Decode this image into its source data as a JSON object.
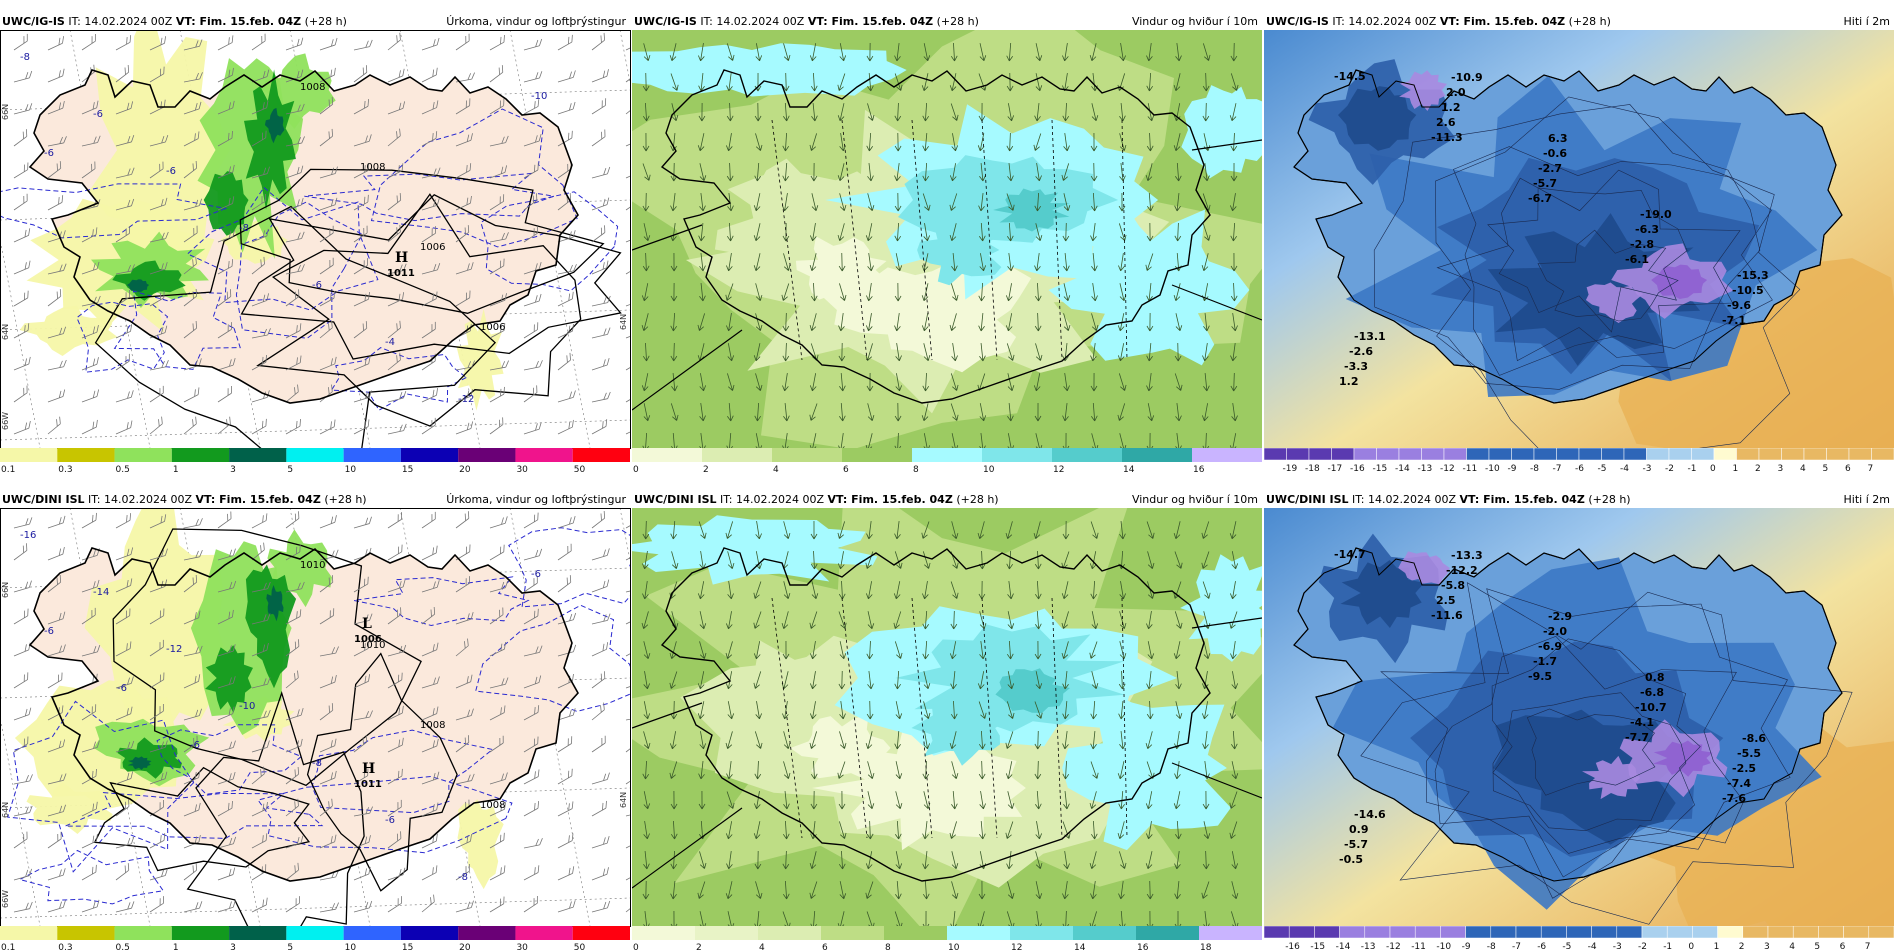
{
  "panels": [
    {
      "model": "UWC/IG-IS",
      "it": "IT: 14.02.2024 00Z",
      "vt": "VT: Fim. 15.feb. 04Z",
      "lead": "(+28 h)",
      "title": "Úrkoma, vindur og loftþrýstingur",
      "kind": "precip",
      "legend": {
        "colors": [
          "#f5f7a8",
          "#c8c500",
          "#8fe25c",
          "#129a1e",
          "#00614a",
          "#00f0f0",
          "#2f64ff",
          "#0c00b4",
          "#6a0076",
          "#f0148c",
          "#ff0010"
        ],
        "labels": [
          "0.1",
          "0.3",
          "0.5",
          "1",
          "3",
          "5",
          "10",
          "15",
          "20",
          "30",
          "50"
        ]
      },
      "highs": [
        {
          "letter": "H",
          "value": "1011"
        }
      ],
      "isobars": [
        "1008",
        "1008",
        "1006",
        "1006"
      ],
      "temps": [
        "-8",
        "-6",
        "-6",
        "-8",
        "-6",
        "-4",
        "-12",
        "-10",
        "-6"
      ],
      "side_labels": [
        "66N",
        "64N",
        "66W",
        "64N"
      ]
    },
    {
      "model": "UWC/IG-IS",
      "it": "IT: 14.02.2024 00Z",
      "vt": "VT: Fim. 15.feb. 04Z",
      "lead": "(+28 h)",
      "title": "Vindur og hviður í 10m",
      "kind": "wind",
      "legend": {
        "colors": [
          "#f3f9d8",
          "#dcedb2",
          "#bedd85",
          "#9ccb62",
          "#a6faff",
          "#7fe6ea",
          "#55cccc",
          "#2fa8a6",
          "#c9b4ff"
        ],
        "labels": [
          "0",
          "2",
          "4",
          "6",
          "8",
          "10",
          "12",
          "14",
          "16"
        ]
      }
    },
    {
      "model": "UWC/IG-IS",
      "it": "IT: 14.02.2024 00Z",
      "vt": "VT: Fim. 15.feb. 04Z",
      "lead": "(+28 h)",
      "title": "Hiti í 2m",
      "kind": "temp",
      "legend": {
        "labels": [
          "-19",
          "-18",
          "-17",
          "-16",
          "-15",
          "-14",
          "-13",
          "-12",
          "-11",
          "-10",
          "-9",
          "-8",
          "-7",
          "-6",
          "-5",
          "-4",
          "-3",
          "-2",
          "-1",
          "0",
          "1",
          "2",
          "3",
          "4",
          "5",
          "6",
          "7"
        ]
      },
      "values": [
        "-14.5",
        "-11.3",
        "-6.7",
        "-6.1",
        "-7.1",
        "1.2",
        "2.6",
        "-5.7",
        "-2.8",
        "-9.6",
        "-3.3",
        "1.2",
        "-2.7",
        "-6.3",
        "-10.5",
        "-2.6",
        "2.0",
        "-0.6",
        "-19.0",
        "-15.3",
        "-13.1",
        "-10.9",
        "6.3"
      ]
    },
    {
      "model": "UWC/DINI ISL",
      "it": "IT: 14.02.2024 00Z",
      "vt": "VT: Fim. 15.feb. 04Z",
      "lead": "(+28 h)",
      "title": "Úrkoma, vindur og loftþrýstingur",
      "kind": "precip",
      "legend": {
        "colors": [
          "#f5f7a8",
          "#c8c500",
          "#8fe25c",
          "#129a1e",
          "#00614a",
          "#00f0f0",
          "#2f64ff",
          "#0c00b4",
          "#6a0076",
          "#f0148c",
          "#ff0010"
        ],
        "labels": [
          "0.1",
          "0.3",
          "0.5",
          "1",
          "3",
          "5",
          "10",
          "15",
          "20",
          "30",
          "50"
        ]
      },
      "highs": [
        {
          "letter": "L",
          "value": "1006"
        },
        {
          "letter": "H",
          "value": "1011"
        }
      ],
      "isobars": [
        "1010",
        "1010",
        "1008",
        "1008"
      ],
      "temps": [
        "-16",
        "-14",
        "-12",
        "-10",
        "-8",
        "-6",
        "-8",
        "-6",
        "-6",
        "-6",
        "-6"
      ],
      "side_labels": [
        "66N",
        "64N",
        "66W",
        "64N"
      ]
    },
    {
      "model": "UWC/DINI ISL",
      "it": "IT: 14.02.2024 00Z",
      "vt": "VT: Fim. 15.feb. 04Z",
      "lead": "(+28 h)",
      "title": "Vindur og hviður í 10m",
      "kind": "wind",
      "legend": {
        "colors": [
          "#f3f9d8",
          "#e8f3c6",
          "#dcedb2",
          "#bedd85",
          "#9ccb62",
          "#a6faff",
          "#7fe6ea",
          "#55cccc",
          "#2fa8a6",
          "#c9b4ff"
        ],
        "labels": [
          "0",
          "2",
          "4",
          "6",
          "8",
          "10",
          "12",
          "14",
          "16",
          "18"
        ]
      }
    },
    {
      "model": "UWC/DINI ISL",
      "it": "IT: 14.02.2024 00Z",
      "vt": "VT: Fim. 15.feb. 04Z",
      "lead": "(+28 h)",
      "title": "Hiti í 2m",
      "kind": "temp",
      "legend": {
        "labels": [
          "-16",
          "-15",
          "-14",
          "-13",
          "-12",
          "-11",
          "-10",
          "-9",
          "-8",
          "-7",
          "-6",
          "-5",
          "-4",
          "-3",
          "-2",
          "-1",
          "0",
          "1",
          "2",
          "3",
          "4",
          "5",
          "6",
          "7"
        ]
      },
      "values": [
        "-14.7",
        "-11.6",
        "-9.5",
        "-7.7",
        "-7.6",
        "-0.5",
        "2.5",
        "-1.7",
        "-4.1",
        "-7.4",
        "-5.7",
        "-5.8",
        "-6.9",
        "-10.7",
        "-2.5",
        "0.9",
        "-12.2",
        "-2.0",
        "-6.8",
        "-5.5",
        "-14.6",
        "-13.3",
        "-2.9",
        "0.8",
        "-8.6"
      ]
    }
  ]
}
